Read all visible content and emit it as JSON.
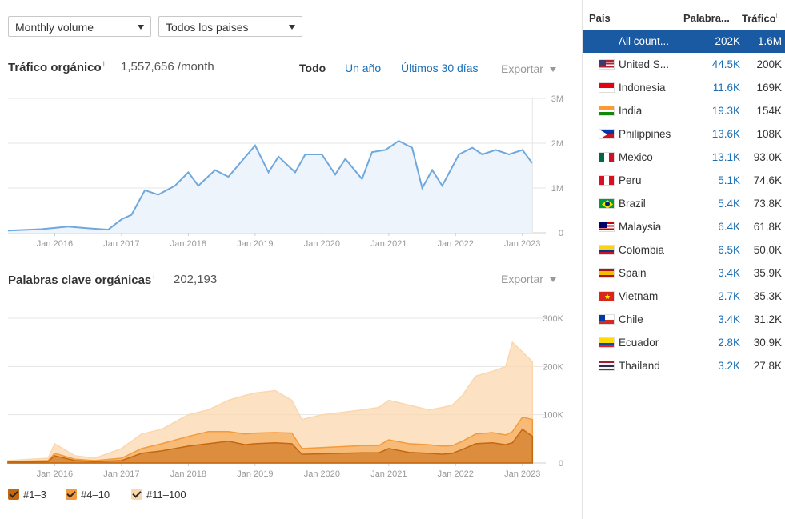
{
  "filters": {
    "volume": "Monthly volume",
    "country": "Todos los paises"
  },
  "traffic": {
    "title": "Tráfico orgánico",
    "info": "i",
    "value": "1,557,656 /month",
    "tabs": [
      "Todo",
      "Un año",
      "Últimos 30 días"
    ],
    "export": "Exportar"
  },
  "keywords": {
    "title": "Palabras clave orgánicas",
    "info": "i",
    "value": "202,193",
    "export": "Exportar"
  },
  "x_axis_labels": [
    "Jan 2016",
    "Jan 2017",
    "Jan 2018",
    "Jan 2019",
    "Jan 2020",
    "Jan 2021",
    "Jan 2022",
    "Jan 2023"
  ],
  "chart_data": [
    {
      "type": "area",
      "title": "Tráfico orgánico",
      "xlabel": "",
      "ylabel": "",
      "y_ticks": [
        "3M",
        "2M",
        "1M",
        "0"
      ],
      "ylim": [
        0,
        3000000
      ],
      "grid": true,
      "color": "#6fa8dc",
      "fill": "#eef4fc",
      "x": [
        2015.3,
        2015.8,
        2016.2,
        2016.5,
        2016.8,
        2017.0,
        2017.15,
        2017.35,
        2017.55,
        2017.8,
        2018.0,
        2018.15,
        2018.4,
        2018.6,
        2018.8,
        2019.0,
        2019.2,
        2019.35,
        2019.6,
        2019.75,
        2020.0,
        2020.2,
        2020.35,
        2020.6,
        2020.75,
        2020.95,
        2021.15,
        2021.35,
        2021.5,
        2021.65,
        2021.8,
        2022.05,
        2022.25,
        2022.4,
        2022.6,
        2022.8,
        2023.0,
        2023.15
      ],
      "y": [
        50000,
        80000,
        140000,
        100000,
        70000,
        300000,
        400000,
        950000,
        850000,
        1050000,
        1350000,
        1050000,
        1400000,
        1250000,
        1600000,
        1950000,
        1350000,
        1700000,
        1350000,
        1750000,
        1750000,
        1300000,
        1650000,
        1200000,
        1800000,
        1850000,
        2050000,
        1900000,
        1000000,
        1400000,
        1050000,
        1750000,
        1900000,
        1750000,
        1850000,
        1750000,
        1850000,
        1550000
      ],
      "values_unit": "visits/month"
    },
    {
      "type": "area",
      "title": "Palabras clave orgánicas",
      "xlabel": "",
      "ylabel": "",
      "y_ticks": [
        "300K",
        "200K",
        "100K",
        "0"
      ],
      "ylim": [
        0,
        300000
      ],
      "grid": true,
      "x": [
        2015.3,
        2015.9,
        2016.0,
        2016.3,
        2016.6,
        2017.0,
        2017.3,
        2017.6,
        2018.0,
        2018.3,
        2018.6,
        2018.85,
        2019.0,
        2019.3,
        2019.55,
        2019.7,
        2020.0,
        2020.3,
        2020.6,
        2020.85,
        2021.0,
        2021.3,
        2021.6,
        2021.8,
        2021.95,
        2022.1,
        2022.3,
        2022.55,
        2022.75,
        2022.85,
        2023.0,
        2023.15
      ],
      "series": [
        {
          "name": "#11–100",
          "color": "#fbd7ad",
          "y": [
            5000,
            10000,
            40000,
            15000,
            10000,
            30000,
            60000,
            70000,
            100000,
            110000,
            130000,
            140000,
            145000,
            150000,
            130000,
            90000,
            100000,
            105000,
            110000,
            115000,
            130000,
            120000,
            110000,
            115000,
            120000,
            140000,
            180000,
            190000,
            200000,
            250000,
            230000,
            210000
          ]
        },
        {
          "name": "#4–10",
          "color": "#f49a3a",
          "y": [
            3000,
            5000,
            20000,
            8000,
            5000,
            10000,
            30000,
            40000,
            55000,
            65000,
            65000,
            60000,
            62000,
            63000,
            62000,
            30000,
            32000,
            34000,
            36000,
            36000,
            48000,
            40000,
            38000,
            35000,
            36000,
            45000,
            60000,
            63000,
            58000,
            65000,
            95000,
            90000
          ]
        },
        {
          "name": "#1–3",
          "color": "#c46810",
          "y": [
            2000,
            3000,
            15000,
            5000,
            3000,
            5000,
            20000,
            25000,
            35000,
            40000,
            45000,
            38000,
            40000,
            42000,
            40000,
            18000,
            19000,
            20000,
            21000,
            21000,
            30000,
            22000,
            20000,
            18000,
            20000,
            28000,
            40000,
            42000,
            38000,
            42000,
            70000,
            55000
          ]
        }
      ]
    }
  ],
  "countries_table": {
    "headers": [
      "País",
      "Palabra...",
      "Tráfico"
    ],
    "header_info": "i",
    "rows": [
      {
        "name": "All count...",
        "keywords": "202K",
        "traffic": "1.6M",
        "flag": "none",
        "selected": true
      },
      {
        "name": "United S...",
        "keywords": "44.5K",
        "traffic": "200K",
        "flag": "us"
      },
      {
        "name": "Indonesia",
        "keywords": "11.6K",
        "traffic": "169K",
        "flag": "id"
      },
      {
        "name": "India",
        "keywords": "19.3K",
        "traffic": "154K",
        "flag": "in"
      },
      {
        "name": "Philippines",
        "keywords": "13.6K",
        "traffic": "108K",
        "flag": "ph"
      },
      {
        "name": "Mexico",
        "keywords": "13.1K",
        "traffic": "93.0K",
        "flag": "mx"
      },
      {
        "name": "Peru",
        "keywords": "5.1K",
        "traffic": "74.6K",
        "flag": "pe"
      },
      {
        "name": "Brazil",
        "keywords": "5.4K",
        "traffic": "73.8K",
        "flag": "br"
      },
      {
        "name": "Malaysia",
        "keywords": "6.4K",
        "traffic": "61.8K",
        "flag": "my"
      },
      {
        "name": "Colombia",
        "keywords": "6.5K",
        "traffic": "50.0K",
        "flag": "co"
      },
      {
        "name": "Spain",
        "keywords": "3.4K",
        "traffic": "35.9K",
        "flag": "es"
      },
      {
        "name": "Vietnam",
        "keywords": "2.7K",
        "traffic": "35.3K",
        "flag": "vn"
      },
      {
        "name": "Chile",
        "keywords": "3.4K",
        "traffic": "31.2K",
        "flag": "cl"
      },
      {
        "name": "Ecuador",
        "keywords": "2.8K",
        "traffic": "30.9K",
        "flag": "ec"
      },
      {
        "name": "Thailand",
        "keywords": "3.2K",
        "traffic": "27.8K",
        "flag": "th"
      }
    ]
  }
}
